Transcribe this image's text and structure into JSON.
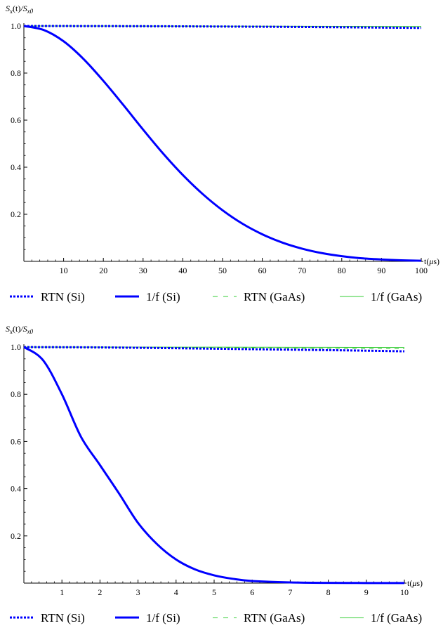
{
  "chart_data": [
    {
      "type": "line",
      "ylabel": "S_x(t)/S_x0",
      "xlabel": "t(μs)",
      "xlim": [
        0,
        100
      ],
      "ylim": [
        0,
        1.0
      ],
      "xticks": [
        10,
        20,
        30,
        40,
        50,
        60,
        70,
        80,
        90,
        100
      ],
      "yticks": [
        0.2,
        0.4,
        0.6,
        0.8,
        1.0
      ],
      "x_tick_labels": [
        "10",
        "20",
        "30",
        "40",
        "50",
        "60",
        "70",
        "80",
        "90",
        "100"
      ],
      "y_tick_labels": [
        "0.2",
        "0.4",
        "0.6",
        "0.8",
        "1.0"
      ],
      "legend_position": "bottom",
      "series": [
        {
          "name": "RTN (Si)",
          "color": "#0000ff",
          "style": "dotted-thick",
          "x": [
            0,
            20,
            40,
            60,
            80,
            100
          ],
          "y": [
            1.0,
            0.9996,
            0.9985,
            0.9968,
            0.9945,
            0.9918
          ]
        },
        {
          "name": "1/f (Si)",
          "color": "#0000ff",
          "style": "solid-thick",
          "x": [
            0,
            5,
            10,
            15,
            20,
            25,
            30,
            35,
            40,
            45,
            50,
            55,
            60,
            65,
            70,
            75,
            80,
            85,
            90,
            95,
            100
          ],
          "y": [
            1.0,
            0.983,
            0.935,
            0.86,
            0.767,
            0.665,
            0.56,
            0.459,
            0.367,
            0.286,
            0.217,
            0.16,
            0.115,
            0.08,
            0.054,
            0.035,
            0.022,
            0.013,
            0.008,
            0.0045,
            0.0025
          ]
        },
        {
          "name": "RTN (GaAs)",
          "color": "#33cc33",
          "style": "dashed",
          "x": [
            0,
            20,
            40,
            60,
            80,
            100
          ],
          "y": [
            1.0,
            0.9998,
            0.9993,
            0.9985,
            0.9975,
            0.996
          ]
        },
        {
          "name": "1/f (GaAs)",
          "color": "#33cc33",
          "style": "solid-thin",
          "x": [
            0,
            20,
            40,
            60,
            80,
            100
          ],
          "y": [
            1.0,
            0.9999,
            0.9996,
            0.9992,
            0.9986,
            0.9978
          ]
        }
      ]
    },
    {
      "type": "line",
      "ylabel": "S_x(t)/S_x0",
      "xlabel": "t(μs)",
      "xlim": [
        0,
        10
      ],
      "ylim": [
        0,
        1.0
      ],
      "xticks": [
        1,
        2,
        3,
        4,
        5,
        6,
        7,
        8,
        9,
        10
      ],
      "yticks": [
        0.2,
        0.4,
        0.6,
        0.8,
        1.0
      ],
      "x_tick_labels": [
        "1",
        "2",
        "3",
        "4",
        "5",
        "6",
        "7",
        "8",
        "9",
        "10"
      ],
      "y_tick_labels": [
        "0.2",
        "0.4",
        "0.6",
        "0.8",
        "1.0"
      ],
      "legend_position": "bottom",
      "series": [
        {
          "name": "RTN (Si)",
          "color": "#0000ff",
          "style": "dotted-thick",
          "x": [
            0,
            2,
            4,
            6,
            8,
            10
          ],
          "y": [
            1.0,
            0.9985,
            0.995,
            0.991,
            0.987,
            0.982
          ]
        },
        {
          "name": "1/f (Si)",
          "color": "#0000ff",
          "style": "solid-thick",
          "x": [
            0,
            0.5,
            1,
            1.5,
            2,
            2.5,
            3,
            3.5,
            4,
            4.5,
            5,
            5.5,
            6,
            7,
            8,
            9,
            10
          ],
          "y": [
            1.0,
            0.945,
            0.8,
            0.62,
            0.5,
            0.38,
            0.255,
            0.165,
            0.1,
            0.058,
            0.033,
            0.018,
            0.009,
            0.003,
            0.001,
            0.0005,
            0.0003
          ]
        },
        {
          "name": "RTN (GaAs)",
          "color": "#33cc33",
          "style": "dashed",
          "x": [
            0,
            2,
            4,
            6,
            8,
            10
          ],
          "y": [
            1.0,
            0.9995,
            0.9985,
            0.997,
            0.995,
            0.993
          ]
        },
        {
          "name": "1/f (GaAs)",
          "color": "#33cc33",
          "style": "solid-thin",
          "x": [
            0,
            2,
            4,
            6,
            8,
            10
          ],
          "y": [
            1.0,
            0.9999,
            0.9997,
            0.9993,
            0.9988,
            0.9981
          ]
        }
      ]
    }
  ]
}
